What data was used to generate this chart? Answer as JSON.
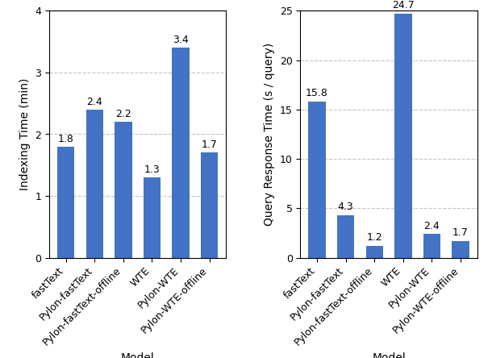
{
  "categories": [
    "fastText",
    "Pylon-fastText",
    "Pylon-fastText-offline",
    "WTE",
    "Pylon-WTE",
    "Pylon-WTE-offline"
  ],
  "indexing_values": [
    1.8,
    2.4,
    2.2,
    1.3,
    3.4,
    1.7
  ],
  "query_values": [
    15.8,
    4.3,
    1.2,
    24.7,
    2.4,
    1.7
  ],
  "bar_color": "#4472c4",
  "left_ylabel": "Indexing Time (min)",
  "right_ylabel": "Query Response Time (s / query)",
  "xlabel": "Model",
  "left_ylim": [
    0,
    4
  ],
  "right_ylim": [
    0,
    25
  ],
  "left_yticks": [
    0,
    1,
    2,
    3,
    4
  ],
  "right_yticks": [
    0,
    5,
    10,
    15,
    20,
    25
  ],
  "grid_color": "#aaaaaa",
  "grid_linestyle": "--",
  "grid_alpha": 0.7,
  "bar_label_fontsize": 9,
  "axis_label_fontsize": 10,
  "tick_label_fontsize": 9,
  "figsize": [
    6.1,
    4.44
  ],
  "dpi": 100
}
